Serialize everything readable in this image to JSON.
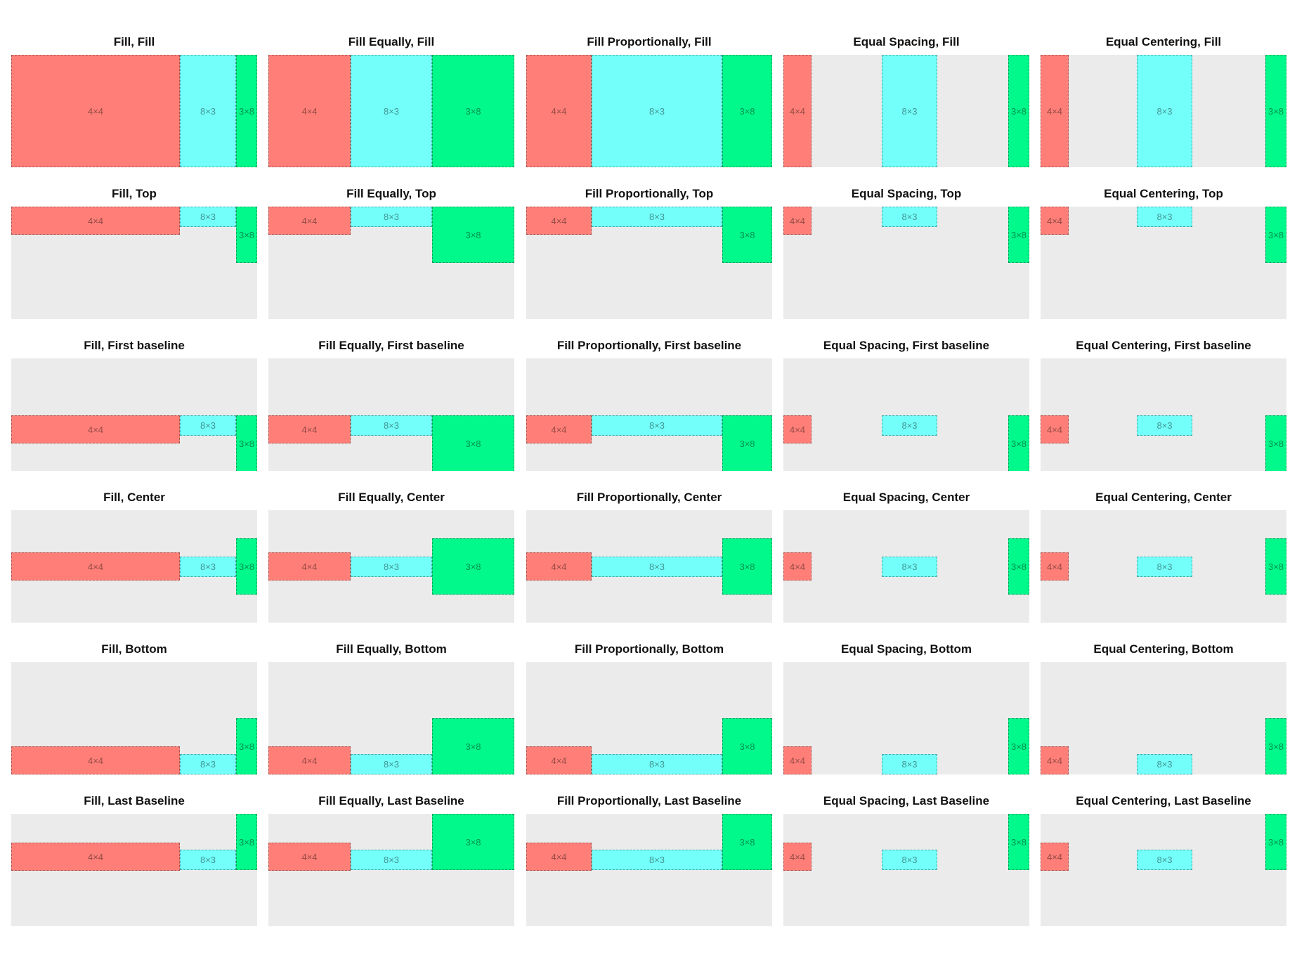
{
  "diagram": {
    "colors": {
      "panel_bg": "#ebebeb",
      "box_a": "#ff7f78",
      "box_b": "#73fffa",
      "box_c": "#00f98a"
    },
    "box_labels": {
      "a": "4×4",
      "b": "8×3",
      "c": "3×8"
    },
    "distributions": [
      "Fill",
      "Fill Equally",
      "Fill Proportionally",
      "Equal Spacing",
      "Equal Centering"
    ],
    "alignments": [
      "Fill",
      "Top",
      "First baseline",
      "Center",
      "Bottom",
      "Last Baseline"
    ],
    "cells": [
      {
        "title": "Fill, Fill",
        "distribution": "Fill",
        "alignment": "Fill"
      },
      {
        "title": "Fill Equally, Fill",
        "distribution": "Fill Equally",
        "alignment": "Fill"
      },
      {
        "title": "Fill Proportionally, Fill",
        "distribution": "Fill Proportionally",
        "alignment": "Fill"
      },
      {
        "title": "Equal Spacing, Fill",
        "distribution": "Equal Spacing",
        "alignment": "Fill"
      },
      {
        "title": "Equal Centering, Fill",
        "distribution": "Equal Centering",
        "alignment": "Fill"
      },
      {
        "title": "Fill, Top",
        "distribution": "Fill",
        "alignment": "Top"
      },
      {
        "title": "Fill Equally, Top",
        "distribution": "Fill Equally",
        "alignment": "Top"
      },
      {
        "title": "Fill Proportionally, Top",
        "distribution": "Fill Proportionally",
        "alignment": "Top"
      },
      {
        "title": "Equal Spacing, Top",
        "distribution": "Equal Spacing",
        "alignment": "Top"
      },
      {
        "title": "Equal Centering, Top",
        "distribution": "Equal Centering",
        "alignment": "Top"
      },
      {
        "title": "Fill, First baseline",
        "distribution": "Fill",
        "alignment": "First baseline"
      },
      {
        "title": "Fill Equally, First baseline",
        "distribution": "Fill Equally",
        "alignment": "First baseline"
      },
      {
        "title": "Fill Proportionally, First baseline",
        "distribution": "Fill Proportionally",
        "alignment": "First baseline"
      },
      {
        "title": "Equal Spacing, First baseline",
        "distribution": "Equal Spacing",
        "alignment": "First baseline"
      },
      {
        "title": "Equal Centering, First baseline",
        "distribution": "Equal Centering",
        "alignment": "First baseline"
      },
      {
        "title": "Fill, Center",
        "distribution": "Fill",
        "alignment": "Center"
      },
      {
        "title": "Fill Equally, Center",
        "distribution": "Fill Equally",
        "alignment": "Center"
      },
      {
        "title": "Fill Proportionally, Center",
        "distribution": "Fill Proportionally",
        "alignment": "Center"
      },
      {
        "title": "Equal Spacing, Center",
        "distribution": "Equal Spacing",
        "alignment": "Center"
      },
      {
        "title": "Equal Centering, Center",
        "distribution": "Equal Centering",
        "alignment": "Center"
      },
      {
        "title": "Fill, Bottom",
        "distribution": "Fill",
        "alignment": "Bottom"
      },
      {
        "title": "Fill Equally, Bottom",
        "distribution": "Fill Equally",
        "alignment": "Bottom"
      },
      {
        "title": "Fill Proportionally, Bottom",
        "distribution": "Fill Proportionally",
        "alignment": "Bottom"
      },
      {
        "title": "Equal Spacing, Bottom",
        "distribution": "Equal Spacing",
        "alignment": "Bottom"
      },
      {
        "title": "Equal Centering, Bottom",
        "distribution": "Equal Centering",
        "alignment": "Bottom"
      },
      {
        "title": "Fill, Last Baseline",
        "distribution": "Fill",
        "alignment": "Last Baseline"
      },
      {
        "title": "Fill Equally, Last Baseline",
        "distribution": "Fill Equally",
        "alignment": "Last Baseline"
      },
      {
        "title": "Fill Proportionally, Last Baseline",
        "distribution": "Fill Proportionally",
        "alignment": "Last Baseline"
      },
      {
        "title": "Equal Spacing, Last Baseline",
        "distribution": "Equal Spacing",
        "alignment": "Last Baseline"
      },
      {
        "title": "Equal Centering, Last Baseline",
        "distribution": "Equal Centering",
        "alignment": "Last Baseline"
      }
    ]
  }
}
